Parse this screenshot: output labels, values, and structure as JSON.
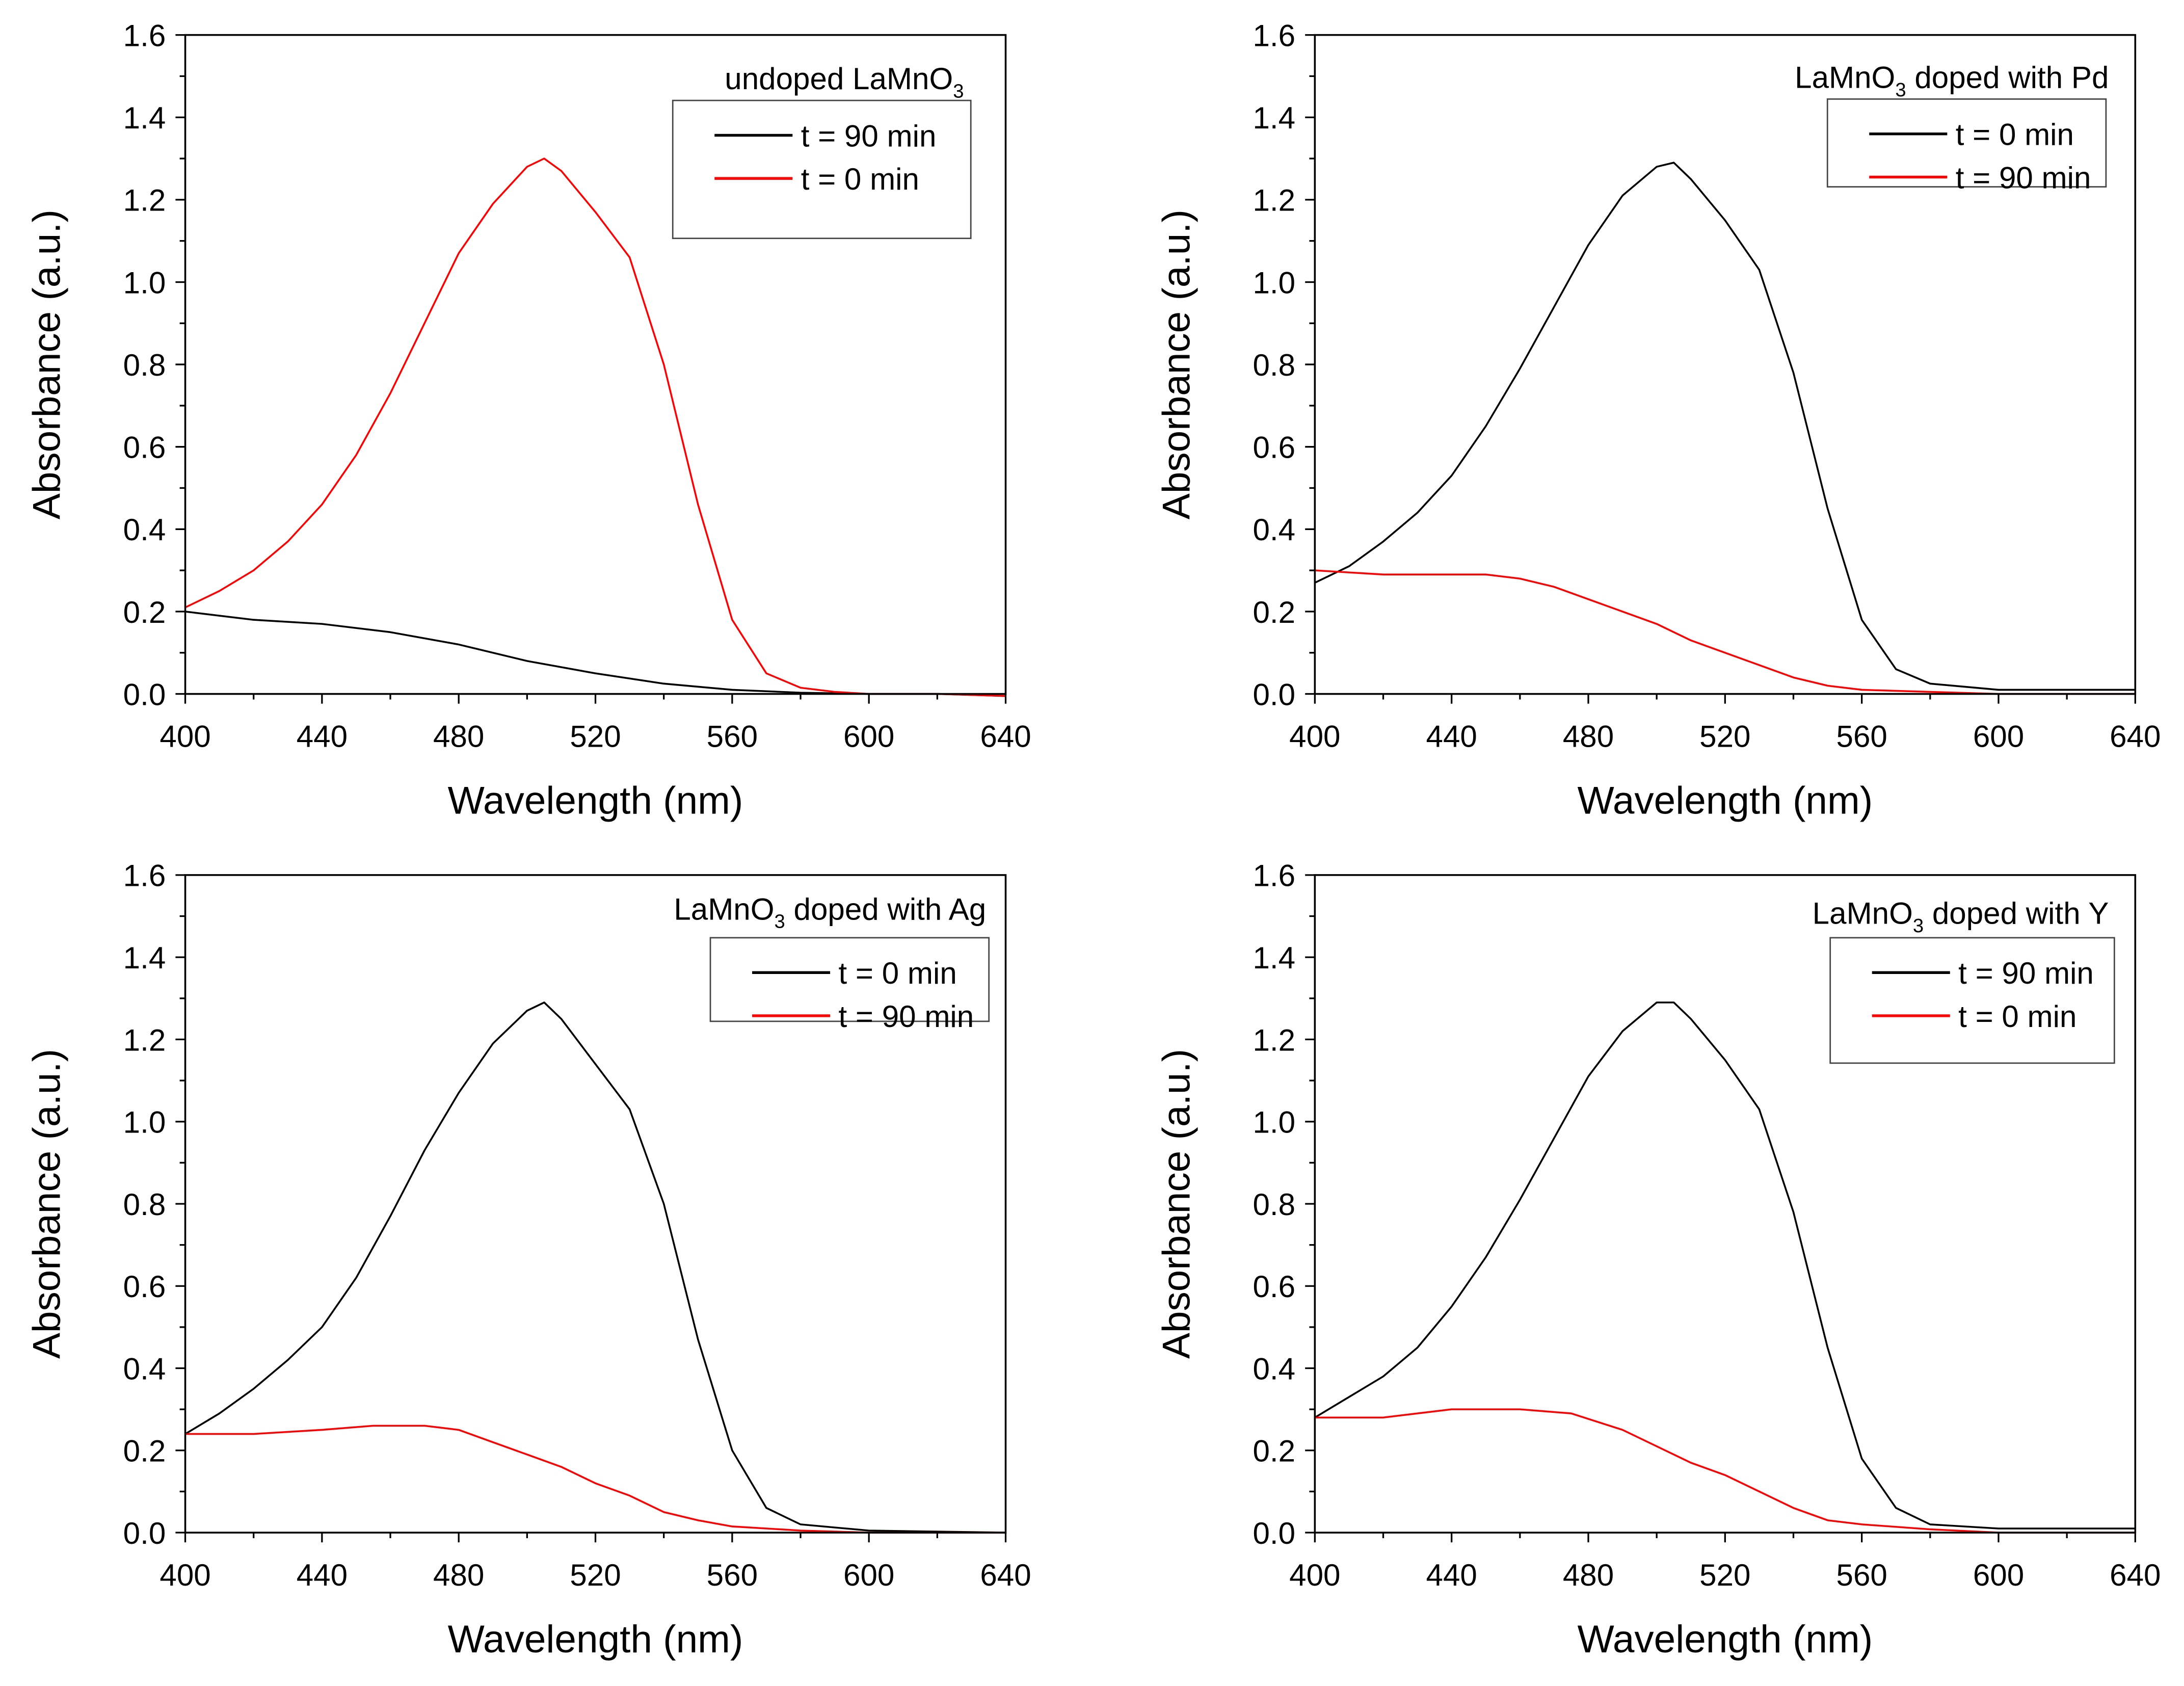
{
  "chart_data": [
    {
      "type": "line",
      "title_parts": [
        "undoped LaMnO",
        "3",
        ""
      ],
      "xlabel": "Wavelength (nm)",
      "ylabel": "Absorbance (a.u.)",
      "xlim": [
        400,
        640
      ],
      "ylim": [
        0,
        1.6
      ],
      "xticks": [
        "400",
        "440",
        "480",
        "520",
        "560",
        "600",
        "640"
      ],
      "yticks": [
        "0.0",
        "0.2",
        "0.4",
        "0.6",
        "0.8",
        "1.0",
        "1.2",
        "1.4",
        "1.6"
      ],
      "legend_placement": "top-right",
      "legend_order": [
        0,
        1
      ],
      "series": [
        {
          "name": "t = 90 min",
          "color": "#000000",
          "x": [
            400,
            420,
            440,
            460,
            480,
            500,
            520,
            540,
            560,
            580,
            600,
            620,
            640
          ],
          "y": [
            0.2,
            0.18,
            0.17,
            0.15,
            0.12,
            0.08,
            0.05,
            0.025,
            0.01,
            0.003,
            0.0,
            0.0,
            -0.005
          ]
        },
        {
          "name": "t = 0 min",
          "color": "#ff0000",
          "x": [
            400,
            410,
            420,
            430,
            440,
            450,
            460,
            470,
            480,
            490,
            500,
            505,
            510,
            520,
            530,
            540,
            550,
            560,
            570,
            580,
            590,
            600,
            620,
            640
          ],
          "y": [
            0.21,
            0.25,
            0.3,
            0.37,
            0.46,
            0.58,
            0.73,
            0.9,
            1.07,
            1.19,
            1.28,
            1.3,
            1.27,
            1.17,
            1.06,
            0.8,
            0.46,
            0.18,
            0.05,
            0.015,
            0.005,
            0.0,
            0.0,
            -0.005
          ]
        }
      ]
    },
    {
      "type": "line",
      "title_parts": [
        "LaMnO",
        "3",
        " doped with Pd"
      ],
      "xlabel": "Wavelength (nm)",
      "ylabel": "Absorbance (a.u.)",
      "xlim": [
        400,
        640
      ],
      "ylim": [
        0,
        1.6
      ],
      "xticks": [
        "400",
        "440",
        "480",
        "520",
        "560",
        "600",
        "640"
      ],
      "yticks": [
        "0.0",
        "0.2",
        "0.4",
        "0.6",
        "0.8",
        "1.0",
        "1.2",
        "1.4",
        "1.6"
      ],
      "legend_placement": "top-right",
      "legend_order": [
        0,
        1
      ],
      "series": [
        {
          "name": "t = 0 min",
          "color": "#000000",
          "x": [
            400,
            410,
            420,
            430,
            440,
            450,
            460,
            470,
            480,
            490,
            500,
            505,
            510,
            520,
            530,
            540,
            550,
            560,
            570,
            580,
            600,
            640
          ],
          "y": [
            0.27,
            0.31,
            0.37,
            0.44,
            0.53,
            0.65,
            0.79,
            0.94,
            1.09,
            1.21,
            1.28,
            1.29,
            1.25,
            1.15,
            1.03,
            0.78,
            0.45,
            0.18,
            0.06,
            0.025,
            0.01,
            0.01
          ]
        },
        {
          "name": "t = 90 min",
          "color": "#ff0000",
          "x": [
            400,
            420,
            440,
            450,
            460,
            470,
            480,
            490,
            500,
            510,
            520,
            530,
            540,
            550,
            560,
            580,
            600,
            640
          ],
          "y": [
            0.3,
            0.29,
            0.29,
            0.29,
            0.28,
            0.26,
            0.23,
            0.2,
            0.17,
            0.13,
            0.1,
            0.07,
            0.04,
            0.02,
            0.01,
            0.005,
            0.0,
            0.0
          ]
        }
      ]
    },
    {
      "type": "line",
      "title_parts": [
        "LaMnO",
        "3",
        " doped with Ag"
      ],
      "xlabel": "Wavelength (nm)",
      "ylabel": "Absorbance (a.u.)",
      "xlim": [
        400,
        640
      ],
      "ylim": [
        0,
        1.6
      ],
      "xticks": [
        "400",
        "440",
        "480",
        "520",
        "560",
        "600",
        "640"
      ],
      "yticks": [
        "0.0",
        "0.2",
        "0.4",
        "0.6",
        "0.8",
        "1.0",
        "1.2",
        "1.4",
        "1.6"
      ],
      "legend_placement": "top-right",
      "legend_order": [
        0,
        1
      ],
      "series": [
        {
          "name": "t = 0 min",
          "color": "#000000",
          "x": [
            400,
            410,
            420,
            430,
            440,
            450,
            460,
            470,
            480,
            490,
            500,
            505,
            510,
            520,
            530,
            540,
            550,
            560,
            570,
            580,
            600,
            640
          ],
          "y": [
            0.24,
            0.29,
            0.35,
            0.42,
            0.5,
            0.62,
            0.77,
            0.93,
            1.07,
            1.19,
            1.27,
            1.29,
            1.25,
            1.14,
            1.03,
            0.8,
            0.47,
            0.2,
            0.06,
            0.02,
            0.005,
            0.0
          ]
        },
        {
          "name": "t = 90 min",
          "color": "#ff0000",
          "x": [
            400,
            420,
            440,
            455,
            470,
            480,
            490,
            500,
            510,
            520,
            530,
            540,
            550,
            560,
            580,
            600,
            640
          ],
          "y": [
            0.24,
            0.24,
            0.25,
            0.26,
            0.26,
            0.25,
            0.22,
            0.19,
            0.16,
            0.12,
            0.09,
            0.05,
            0.03,
            0.015,
            0.005,
            0.0,
            0.0
          ]
        }
      ]
    },
    {
      "type": "line",
      "title_parts": [
        "LaMnO",
        "3",
        " doped with Y"
      ],
      "xlabel": "Wavelength (nm)",
      "ylabel": "Absorbance (a.u.)",
      "xlim": [
        400,
        640
      ],
      "ylim": [
        0,
        1.6
      ],
      "xticks": [
        "400",
        "440",
        "480",
        "520",
        "560",
        "600",
        "640"
      ],
      "yticks": [
        "0.0",
        "0.2",
        "0.4",
        "0.6",
        "0.8",
        "1.0",
        "1.2",
        "1.4",
        "1.6"
      ],
      "legend_placement": "top-right",
      "legend_order": [
        0,
        1
      ],
      "series": [
        {
          "name": "t = 90 min",
          "color": "#000000",
          "x": [
            400,
            410,
            420,
            430,
            440,
            450,
            460,
            470,
            480,
            490,
            500,
            505,
            510,
            520,
            530,
            540,
            550,
            560,
            570,
            580,
            600,
            640
          ],
          "y": [
            0.28,
            0.33,
            0.38,
            0.45,
            0.55,
            0.67,
            0.81,
            0.96,
            1.11,
            1.22,
            1.29,
            1.29,
            1.25,
            1.15,
            1.03,
            0.78,
            0.45,
            0.18,
            0.06,
            0.02,
            0.01,
            0.01
          ]
        },
        {
          "name": "t = 0 min",
          "color": "#ff0000",
          "x": [
            400,
            420,
            440,
            460,
            475,
            490,
            500,
            510,
            520,
            530,
            540,
            550,
            560,
            580,
            600,
            640
          ],
          "y": [
            0.28,
            0.28,
            0.3,
            0.3,
            0.29,
            0.25,
            0.21,
            0.17,
            0.14,
            0.1,
            0.06,
            0.03,
            0.02,
            0.008,
            0.0,
            0.0
          ]
        }
      ]
    }
  ]
}
